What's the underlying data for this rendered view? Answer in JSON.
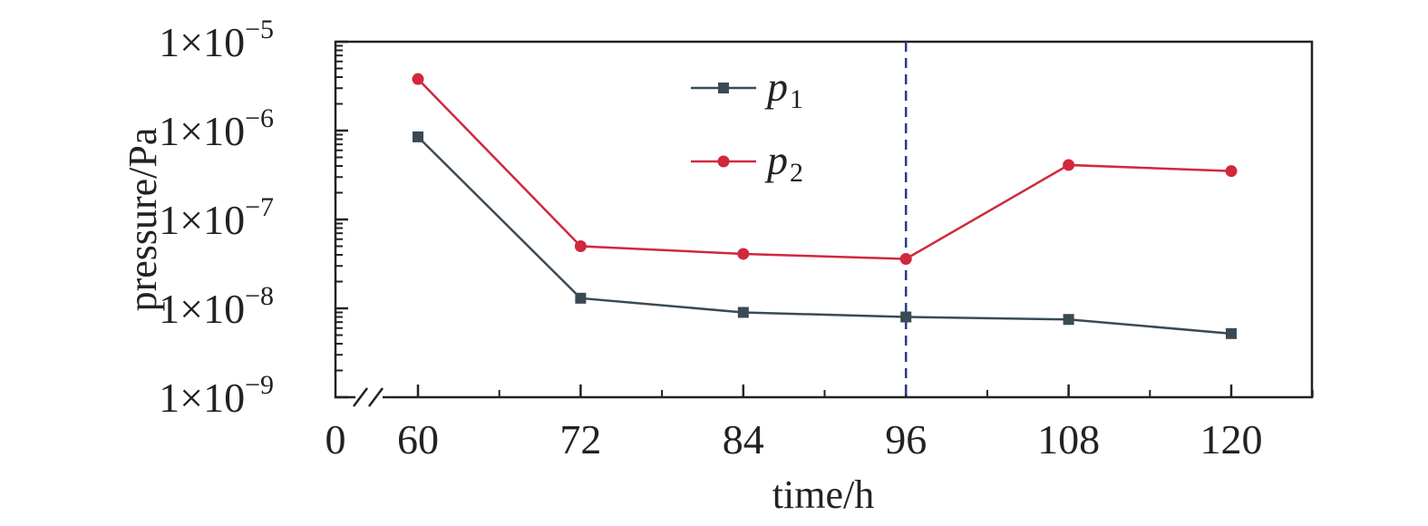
{
  "chart_data": {
    "type": "line",
    "xlabel": "time/h",
    "ylabel": "pressure/Pa",
    "x": [
      60,
      72,
      84,
      96,
      108,
      120
    ],
    "x_ticks": [
      "60",
      "72",
      "84",
      "96",
      "108",
      "120"
    ],
    "x_origin_label": "0",
    "x_axis_break": true,
    "xlim": [
      60,
      132
    ],
    "ylim": [
      1e-09,
      1e-05
    ],
    "y_scale": "log",
    "y_ticks": [
      {
        "base": "1×10",
        "exp": "−9"
      },
      {
        "base": "1×10",
        "exp": "−8"
      },
      {
        "base": "1×10",
        "exp": "−7"
      },
      {
        "base": "1×10",
        "exp": "−6"
      },
      {
        "base": "1×10",
        "exp": "−5"
      }
    ],
    "series": [
      {
        "name": "p",
        "sub": "1",
        "marker": "square",
        "color": "#3a4a55",
        "values": [
          8.5e-07,
          1.3e-08,
          9e-09,
          8e-09,
          7.5e-09,
          5.2e-09
        ]
      },
      {
        "name": "p",
        "sub": "2",
        "marker": "circle",
        "color": "#d0283c",
        "values": [
          3.8e-06,
          5e-08,
          4.1e-08,
          3.6e-08,
          4.1e-07,
          3.5e-07
        ]
      }
    ],
    "vline": {
      "x": 96,
      "style": "dashed",
      "color": "#2a3a8a"
    },
    "legend_position": "top-center",
    "grid": false
  }
}
